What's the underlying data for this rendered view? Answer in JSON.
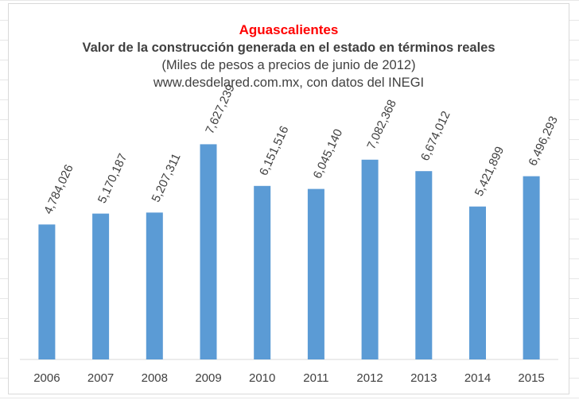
{
  "chart_data": {
    "type": "bar",
    "title": "Aguascalientes",
    "subtitle": "Valor de la construcción generada en el estado en términos reales",
    "units_note": "(Miles de pesos a precios de junio de 2012)",
    "source_note": "www.desdelared.com.mx, con datos del INEGI",
    "xlabel": "",
    "ylabel": "",
    "ylim": [
      0,
      9500000
    ],
    "grid": false,
    "legend": "none",
    "bar_color": "#5b9bd5",
    "title_color": "#ff0000",
    "categories": [
      "2006",
      "2007",
      "2008",
      "2009",
      "2010",
      "2011",
      "2012",
      "2013",
      "2014",
      "2015"
    ],
    "values": [
      4784026,
      5170187,
      5207311,
      7627239,
      6151516,
      6045140,
      7082368,
      6674012,
      5421899,
      6496293
    ],
    "data_labels": [
      "4,784,026",
      "5,170,187",
      "5,207,311",
      "7,627,239",
      "6,151,516",
      "6,045,140",
      "7,082,368",
      "6,674,012",
      "5,421,899",
      "6,496,293"
    ]
  }
}
